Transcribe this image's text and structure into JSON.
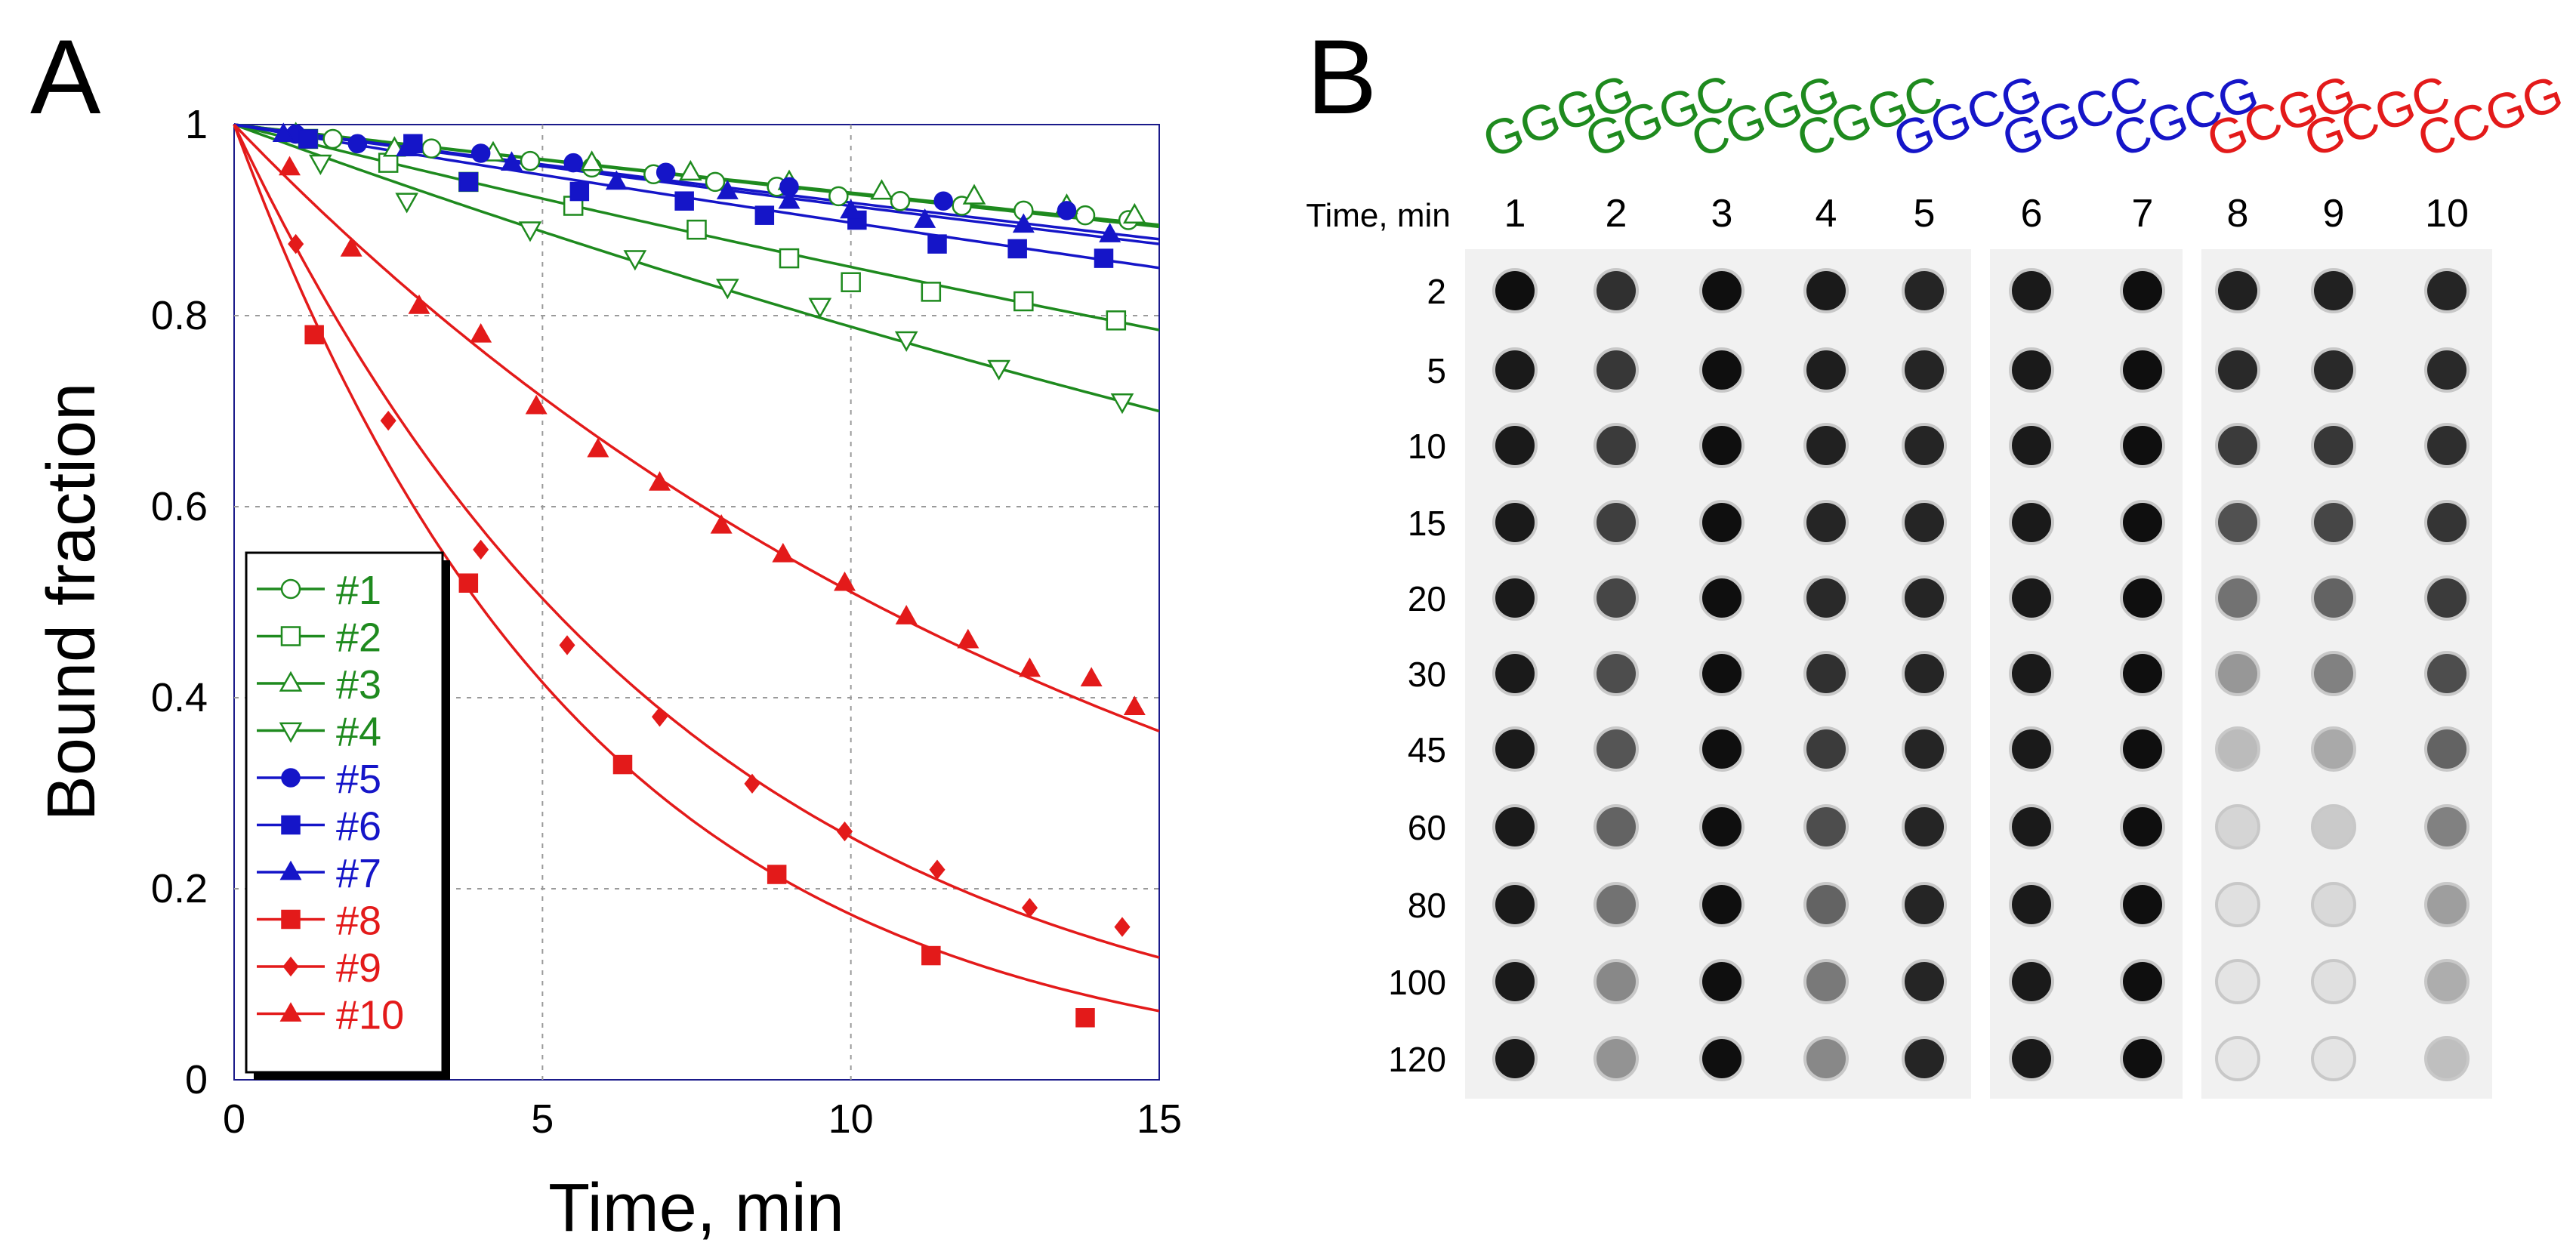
{
  "panel_a": {
    "letter": "A",
    "chart_data": {
      "type": "scatter",
      "xlabel": "Time, min",
      "ylabel": "Bound fraction",
      "xlim": [
        0,
        15
      ],
      "ylim": [
        0,
        1
      ],
      "xticks": [
        "0",
        "5",
        "10",
        "15"
      ],
      "yticks": [
        "0",
        "0.2",
        "0.4",
        "0.6",
        "0.8",
        "1"
      ],
      "grid": true,
      "legend_placement": "bottom-left",
      "series": [
        {
          "name": "#1",
          "color": "#1e8a1e",
          "marker": "circle-open",
          "fit_end": 0.893,
          "points": [
            [
              1.6,
              0.985
            ],
            [
              3.2,
              0.975
            ],
            [
              4.8,
              0.962
            ],
            [
              5.8,
              0.955
            ],
            [
              6.8,
              0.948
            ],
            [
              7.8,
              0.94
            ],
            [
              8.8,
              0.935
            ],
            [
              9.8,
              0.925
            ],
            [
              10.8,
              0.92
            ],
            [
              11.8,
              0.915
            ],
            [
              12.8,
              0.91
            ],
            [
              13.8,
              0.905
            ],
            [
              14.5,
              0.9
            ]
          ]
        },
        {
          "name": "#2",
          "color": "#1e8a1e",
          "marker": "square-open",
          "fit_end": 0.785,
          "points": [
            [
              1.2,
              0.985
            ],
            [
              2.5,
              0.96
            ],
            [
              3.8,
              0.94
            ],
            [
              5.5,
              0.915
            ],
            [
              7.5,
              0.89
            ],
            [
              9.0,
              0.86
            ],
            [
              10.0,
              0.835
            ],
            [
              11.3,
              0.825
            ],
            [
              12.8,
              0.815
            ],
            [
              14.3,
              0.795
            ]
          ]
        },
        {
          "name": "#3",
          "color": "#1e8a1e",
          "marker": "triangle-open",
          "fit_end": 0.895,
          "points": [
            [
              1.0,
              0.99
            ],
            [
              2.6,
              0.975
            ],
            [
              4.2,
              0.97
            ],
            [
              5.8,
              0.96
            ],
            [
              7.4,
              0.95
            ],
            [
              9.0,
              0.94
            ],
            [
              10.5,
              0.93
            ],
            [
              12.0,
              0.925
            ],
            [
              13.5,
              0.915
            ],
            [
              14.6,
              0.905
            ]
          ]
        },
        {
          "name": "#4",
          "color": "#1e8a1e",
          "marker": "triangle-down-open",
          "fit_end": 0.7,
          "points": [
            [
              1.4,
              0.96
            ],
            [
              2.8,
              0.92
            ],
            [
              4.8,
              0.89
            ],
            [
              6.5,
              0.86
            ],
            [
              8.0,
              0.83
            ],
            [
              9.5,
              0.81
            ],
            [
              10.9,
              0.775
            ],
            [
              12.4,
              0.745
            ],
            [
              14.4,
              0.71
            ]
          ]
        },
        {
          "name": "#5",
          "color": "#1515c8",
          "marker": "circle",
          "fit_end": 0.88,
          "points": [
            [
              1.0,
              0.99
            ],
            [
              2.0,
              0.98
            ],
            [
              4.0,
              0.97
            ],
            [
              5.5,
              0.96
            ],
            [
              7.0,
              0.95
            ],
            [
              9.0,
              0.935
            ],
            [
              11.5,
              0.92
            ],
            [
              13.5,
              0.91
            ]
          ]
        },
        {
          "name": "#6",
          "color": "#1515c8",
          "marker": "square",
          "fit_end": 0.85,
          "points": [
            [
              1.2,
              0.985
            ],
            [
              2.9,
              0.98
            ],
            [
              3.8,
              0.94
            ],
            [
              5.6,
              0.93
            ],
            [
              7.3,
              0.92
            ],
            [
              8.6,
              0.905
            ],
            [
              10.1,
              0.9
            ],
            [
              11.4,
              0.875
            ],
            [
              12.7,
              0.87
            ],
            [
              14.1,
              0.86
            ]
          ]
        },
        {
          "name": "#7",
          "color": "#1515c8",
          "marker": "triangle",
          "fit_end": 0.875,
          "points": [
            [
              0.8,
              0.99
            ],
            [
              2.8,
              0.975
            ],
            [
              4.5,
              0.96
            ],
            [
              6.2,
              0.94
            ],
            [
              8.0,
              0.93
            ],
            [
              9.0,
              0.92
            ],
            [
              10.0,
              0.91
            ],
            [
              11.2,
              0.9
            ],
            [
              12.8,
              0.895
            ],
            [
              14.2,
              0.885
            ]
          ]
        },
        {
          "name": "#8",
          "color": "#e31a1a",
          "marker": "square",
          "fit_end": 0.072,
          "points": [
            [
              1.3,
              0.78
            ],
            [
              3.8,
              0.52
            ],
            [
              6.3,
              0.33
            ],
            [
              8.8,
              0.215
            ],
            [
              11.3,
              0.13
            ],
            [
              13.8,
              0.065
            ]
          ]
        },
        {
          "name": "#9",
          "color": "#e31a1a",
          "marker": "diamond",
          "fit_end": 0.128,
          "points": [
            [
              1.0,
              0.875
            ],
            [
              2.5,
              0.69
            ],
            [
              4.0,
              0.555
            ],
            [
              5.4,
              0.455
            ],
            [
              6.9,
              0.38
            ],
            [
              8.4,
              0.31
            ],
            [
              9.9,
              0.26
            ],
            [
              11.4,
              0.22
            ],
            [
              12.9,
              0.18
            ],
            [
              14.4,
              0.16
            ]
          ]
        },
        {
          "name": "#10",
          "color": "#e31a1a",
          "marker": "triangle",
          "fit_end": 0.365,
          "points": [
            [
              0.9,
              0.955
            ],
            [
              1.9,
              0.87
            ],
            [
              3.0,
              0.81
            ],
            [
              4.0,
              0.78
            ],
            [
              4.9,
              0.705
            ],
            [
              5.9,
              0.66
            ],
            [
              6.9,
              0.625
            ],
            [
              7.9,
              0.58
            ],
            [
              8.9,
              0.55
            ],
            [
              9.9,
              0.52
            ],
            [
              10.9,
              0.485
            ],
            [
              11.9,
              0.46
            ],
            [
              12.9,
              0.43
            ],
            [
              13.9,
              0.42
            ],
            [
              14.6,
              0.39
            ]
          ]
        }
      ]
    }
  },
  "panel_b": {
    "letter": "B",
    "time_header": "Time, min",
    "columns": [
      {
        "seq": "GGGG",
        "num": "1",
        "color": "#1e8a1e"
      },
      {
        "seq": "GGGC",
        "num": "2",
        "color": "#1e8a1e"
      },
      {
        "seq": "CGGG",
        "num": "3",
        "color": "#1e8a1e"
      },
      {
        "seq": "CGGC",
        "num": "4",
        "color": "#1e8a1e"
      },
      {
        "seq": "GGCG",
        "num": "5",
        "color": "#1515c8"
      },
      {
        "seq": "GGCC",
        "num": "6",
        "color": "#1515c8"
      },
      {
        "seq": "CGCG",
        "num": "7",
        "color": "#1515c8"
      },
      {
        "seq": "GCGG",
        "num": "8",
        "color": "#e31a1a"
      },
      {
        "seq": "GCGC",
        "num": "9",
        "color": "#e31a1a"
      },
      {
        "seq": "CCGG",
        "num": "10",
        "color": "#e31a1a"
      }
    ],
    "times": [
      "2",
      "5",
      "10",
      "15",
      "20",
      "30",
      "45",
      "60",
      "80",
      "100",
      "120"
    ],
    "spot_intensity": [
      [
        1.0,
        0.95,
        0.95,
        0.95,
        0.95,
        0.95,
        0.95,
        0.95,
        0.95,
        0.95,
        0.95
      ],
      [
        0.85,
        0.82,
        0.8,
        0.78,
        0.75,
        0.72,
        0.68,
        0.62,
        0.55,
        0.45,
        0.4
      ],
      [
        1.0,
        1.0,
        1.0,
        1.0,
        1.0,
        1.0,
        1.0,
        1.0,
        1.0,
        1.0,
        1.0
      ],
      [
        0.95,
        0.93,
        0.92,
        0.9,
        0.88,
        0.85,
        0.8,
        0.72,
        0.62,
        0.52,
        0.45
      ],
      [
        0.9,
        0.9,
        0.9,
        0.9,
        0.9,
        0.9,
        0.9,
        0.9,
        0.9,
        0.9,
        0.9
      ],
      [
        0.95,
        0.95,
        0.95,
        0.95,
        0.95,
        0.95,
        0.95,
        0.95,
        0.95,
        0.95,
        0.95
      ],
      [
        1.0,
        1.0,
        1.0,
        1.0,
        1.0,
        1.0,
        1.0,
        1.0,
        1.0,
        1.0,
        1.0
      ],
      [
        0.92,
        0.88,
        0.8,
        0.7,
        0.55,
        0.38,
        0.22,
        0.1,
        0.05,
        0.03,
        0.02
      ],
      [
        0.92,
        0.88,
        0.82,
        0.75,
        0.62,
        0.48,
        0.3,
        0.15,
        0.08,
        0.05,
        0.03
      ],
      [
        0.9,
        0.88,
        0.86,
        0.83,
        0.8,
        0.72,
        0.62,
        0.48,
        0.35,
        0.28,
        0.2
      ]
    ]
  }
}
